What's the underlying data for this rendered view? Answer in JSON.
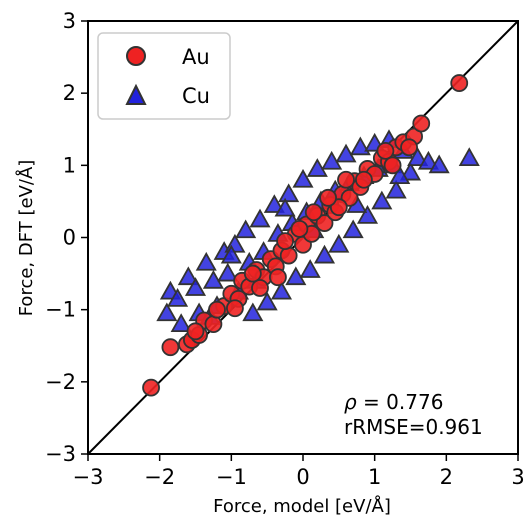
{
  "chart_data": {
    "type": "scatter",
    "xlabel": "Force, model [eV/Å]",
    "ylabel": "Force, DFT [eV/Å]",
    "xlim": [
      -3,
      3
    ],
    "ylim": [
      -3,
      3
    ],
    "xticks": [
      "−3",
      "−2",
      "−1",
      "0",
      "1",
      "2",
      "3"
    ],
    "yticks": [
      "−3",
      "−2",
      "−1",
      "0",
      "1",
      "2",
      "3"
    ],
    "tick_values": [
      -3,
      -2,
      -1,
      0,
      1,
      2,
      3
    ],
    "grid": false,
    "legend_position": "top-left",
    "identity_line": true,
    "annotations": {
      "rho_symbol": "ρ",
      "rho_text": " = 0.776",
      "rrmse_text": "rRMSE=0.961"
    },
    "series": [
      {
        "name": "Au",
        "marker": "circle",
        "color": "#ee2222",
        "points": [
          [
            -2.12,
            -2.08
          ],
          [
            2.18,
            2.14
          ],
          [
            -1.85,
            -1.52
          ],
          [
            -1.62,
            -1.48
          ],
          [
            -1.55,
            -1.42
          ],
          [
            -1.45,
            -1.35
          ],
          [
            -1.38,
            -1.15
          ],
          [
            -1.25,
            -1.2
          ],
          [
            -1.1,
            -0.95
          ],
          [
            -1.0,
            -0.78
          ],
          [
            -0.9,
            -0.85
          ],
          [
            -0.85,
            -0.6
          ],
          [
            -0.75,
            -0.68
          ],
          [
            -0.65,
            -0.45
          ],
          [
            -0.55,
            -0.55
          ],
          [
            -0.45,
            -0.3
          ],
          [
            -0.38,
            -0.4
          ],
          [
            -0.3,
            -0.18
          ],
          [
            -0.2,
            -0.25
          ],
          [
            -0.1,
            0.05
          ],
          [
            0.0,
            -0.1
          ],
          [
            0.05,
            0.18
          ],
          [
            0.12,
            0.05
          ],
          [
            0.2,
            0.3
          ],
          [
            0.3,
            0.2
          ],
          [
            0.38,
            0.45
          ],
          [
            0.45,
            0.35
          ],
          [
            0.55,
            0.6
          ],
          [
            0.65,
            0.55
          ],
          [
            0.72,
            0.78
          ],
          [
            0.8,
            0.7
          ],
          [
            0.9,
            0.95
          ],
          [
            1.0,
            0.88
          ],
          [
            1.1,
            1.1
          ],
          [
            1.2,
            1.05
          ],
          [
            1.3,
            1.25
          ],
          [
            1.4,
            1.32
          ],
          [
            1.55,
            1.4
          ],
          [
            1.65,
            1.58
          ],
          [
            1.48,
            1.25
          ],
          [
            -1.2,
            -1.0
          ],
          [
            -0.95,
            -0.98
          ],
          [
            -0.6,
            -0.7
          ],
          [
            -0.25,
            -0.05
          ],
          [
            0.15,
            0.35
          ],
          [
            0.5,
            0.42
          ],
          [
            0.85,
            0.8
          ],
          [
            1.15,
            1.2
          ],
          [
            -0.7,
            -0.5
          ],
          [
            0.35,
            0.55
          ],
          [
            -1.5,
            -1.3
          ],
          [
            -0.05,
            0.12
          ],
          [
            0.6,
            0.8
          ],
          [
            1.25,
            1.0
          ],
          [
            -0.35,
            -0.55
          ]
        ]
      },
      {
        "name": "Cu",
        "marker": "triangle",
        "color": "#2222dd",
        "points": [
          [
            2.32,
            1.1
          ],
          [
            -1.9,
            -1.05
          ],
          [
            -1.85,
            -0.75
          ],
          [
            -1.75,
            -0.85
          ],
          [
            -1.7,
            -1.2
          ],
          [
            -1.6,
            -0.55
          ],
          [
            -1.5,
            -0.7
          ],
          [
            -1.45,
            -1.05
          ],
          [
            -1.35,
            -0.35
          ],
          [
            -1.25,
            -0.6
          ],
          [
            -1.2,
            -0.95
          ],
          [
            -1.1,
            -0.2
          ],
          [
            -1.05,
            -0.5
          ],
          [
            -0.95,
            -0.1
          ],
          [
            -0.9,
            -0.75
          ],
          [
            -0.8,
            0.1
          ],
          [
            -0.75,
            -0.35
          ],
          [
            -0.7,
            -1.05
          ],
          [
            -0.6,
            0.25
          ],
          [
            -0.55,
            -0.2
          ],
          [
            -0.5,
            -0.9
          ],
          [
            -0.4,
            0.45
          ],
          [
            -0.35,
            0.05
          ],
          [
            -0.3,
            -0.75
          ],
          [
            -0.2,
            0.6
          ],
          [
            -0.15,
            0.2
          ],
          [
            -0.1,
            -0.55
          ],
          [
            0.0,
            0.8
          ],
          [
            0.05,
            0.35
          ],
          [
            0.1,
            -0.45
          ],
          [
            0.2,
            0.95
          ],
          [
            0.25,
            0.5
          ],
          [
            0.3,
            -0.25
          ],
          [
            0.4,
            1.05
          ],
          [
            0.45,
            0.65
          ],
          [
            0.5,
            -0.1
          ],
          [
            0.6,
            1.15
          ],
          [
            0.65,
            0.75
          ],
          [
            0.7,
            0.1
          ],
          [
            0.8,
            1.25
          ],
          [
            0.85,
            0.85
          ],
          [
            0.9,
            0.3
          ],
          [
            1.0,
            1.3
          ],
          [
            1.05,
            0.95
          ],
          [
            1.1,
            0.5
          ],
          [
            1.2,
            1.35
          ],
          [
            1.25,
            1.0
          ],
          [
            1.3,
            0.65
          ],
          [
            1.4,
            1.2
          ],
          [
            1.5,
            0.9
          ],
          [
            1.6,
            1.1
          ],
          [
            1.75,
            1.05
          ],
          [
            1.9,
            1.0
          ],
          [
            -1.3,
            -1.1
          ],
          [
            -0.65,
            -0.6
          ],
          [
            0.15,
            0.1
          ],
          [
            0.75,
            0.45
          ],
          [
            1.35,
            0.85
          ],
          [
            -1.0,
            -0.25
          ],
          [
            -0.25,
            0.4
          ]
        ]
      }
    ]
  }
}
